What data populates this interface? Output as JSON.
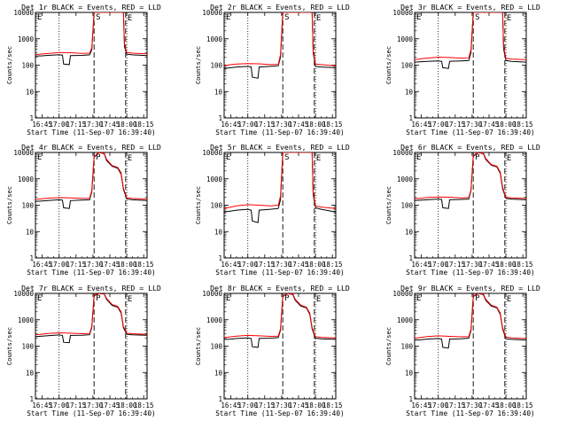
{
  "figure": {
    "ylabel": "Counts/sec",
    "xlabel": "Start Time (11-Sep-07 16:39:40)",
    "xticks": [
      "16:45",
      "17:00",
      "17:15",
      "17:30",
      "17:45",
      "18:00",
      "18:15"
    ],
    "yticks": [
      "1",
      "10",
      "100",
      "1000",
      "10000"
    ],
    "colors": {
      "events": "#000000",
      "lld": "#ff0000"
    },
    "markers": {
      "start": "S",
      "peak": "P",
      "end": "E"
    }
  },
  "chart_data": [
    {
      "type": "line",
      "title": "Det 1r BLACK = Events, RED = LLD",
      "ylim": [
        1,
        10000
      ],
      "xlim": [
        "16:39",
        "18:18"
      ],
      "log_y": true,
      "marker": "S",
      "series": [
        {
          "name": "Events",
          "x": [
            "16:39",
            "16:45",
            "16:50",
            "17:00",
            "17:03",
            "17:04",
            "17:09",
            "17:10",
            "17:20",
            "17:27",
            "17:29",
            "17:31",
            "17:35",
            "17:40",
            "17:50",
            "17:57",
            "17:58",
            "18:00",
            "18:05",
            "18:18"
          ],
          "y": [
            220,
            225,
            235,
            250,
            240,
            110,
            105,
            230,
            235,
            245,
            380,
            10000,
            10000,
            10000,
            10000,
            10000,
            500,
            260,
            245,
            230
          ]
        },
        {
          "name": "LLD",
          "x": [
            "16:39",
            "16:45",
            "16:50",
            "17:00",
            "17:10",
            "17:20",
            "17:27",
            "17:29",
            "17:31",
            "17:35",
            "17:40",
            "17:50",
            "17:57",
            "17:58",
            "18:00",
            "18:05",
            "18:18"
          ],
          "y": [
            250,
            265,
            275,
            300,
            295,
            280,
            285,
            450,
            10000,
            10000,
            10000,
            10000,
            10000,
            600,
            300,
            285,
            270
          ]
        }
      ]
    },
    {
      "type": "line",
      "title": "Det 2r BLACK = Events, RED = LLD",
      "ylim": [
        1,
        10000
      ],
      "xlim": [
        "16:39",
        "18:18"
      ],
      "log_y": true,
      "marker": "S",
      "series": [
        {
          "name": "Events",
          "x": [
            "16:39",
            "16:45",
            "16:50",
            "17:00",
            "17:03",
            "17:04",
            "17:09",
            "17:10",
            "17:20",
            "17:27",
            "17:29",
            "17:31",
            "17:35",
            "17:40",
            "17:50",
            "17:57",
            "17:58",
            "18:00",
            "18:05",
            "18:18"
          ],
          "y": [
            75,
            80,
            85,
            90,
            85,
            35,
            32,
            85,
            90,
            95,
            200,
            10000,
            10000,
            10000,
            10000,
            10000,
            300,
            90,
            85,
            80
          ]
        },
        {
          "name": "LLD",
          "x": [
            "16:39",
            "16:45",
            "16:50",
            "17:00",
            "17:10",
            "17:20",
            "17:27",
            "17:29",
            "17:31",
            "17:35",
            "17:40",
            "17:50",
            "17:57",
            "17:58",
            "18:00",
            "18:05",
            "18:18"
          ],
          "y": [
            95,
            105,
            110,
            115,
            112,
            105,
            108,
            250,
            10000,
            10000,
            10000,
            10000,
            10000,
            350,
            110,
            105,
            95
          ]
        }
      ]
    },
    {
      "type": "line",
      "title": "Det 3r BLACK = Events, RED = LLD",
      "ylim": [
        1,
        10000
      ],
      "xlim": [
        "16:39",
        "18:18"
      ],
      "log_y": true,
      "marker": "S",
      "series": [
        {
          "name": "Events",
          "x": [
            "16:39",
            "16:45",
            "16:50",
            "17:00",
            "17:03",
            "17:04",
            "17:09",
            "17:10",
            "17:20",
            "17:27",
            "17:29",
            "17:31",
            "17:35",
            "17:40",
            "17:50",
            "17:57",
            "17:58",
            "18:00",
            "18:05",
            "18:18"
          ],
          "y": [
            130,
            135,
            140,
            145,
            140,
            80,
            75,
            140,
            145,
            150,
            300,
            10000,
            10000,
            10000,
            10000,
            10000,
            400,
            150,
            140,
            130
          ]
        },
        {
          "name": "LLD",
          "x": [
            "16:39",
            "16:45",
            "16:50",
            "17:00",
            "17:10",
            "17:20",
            "17:27",
            "17:29",
            "17:31",
            "17:35",
            "17:40",
            "17:50",
            "17:57",
            "17:58",
            "18:00",
            "18:05",
            "18:18"
          ],
          "y": [
            160,
            175,
            185,
            200,
            195,
            185,
            190,
            380,
            10000,
            10000,
            10000,
            10000,
            10000,
            500,
            180,
            170,
            160
          ]
        }
      ]
    },
    {
      "type": "line",
      "title": "Det 4r BLACK = Events, RED = LLD",
      "ylim": [
        1,
        10000
      ],
      "xlim": [
        "16:39",
        "18:18"
      ],
      "log_y": true,
      "marker": "P",
      "series": [
        {
          "name": "Events",
          "x": [
            "16:39",
            "16:45",
            "16:50",
            "17:00",
            "17:03",
            "17:04",
            "17:09",
            "17:10",
            "17:20",
            "17:27",
            "17:29",
            "17:31",
            "17:35",
            "17:40",
            "17:42",
            "17:47",
            "17:52",
            "17:55",
            "17:57",
            "18:00",
            "18:05",
            "18:18"
          ],
          "y": [
            140,
            145,
            150,
            160,
            155,
            80,
            75,
            150,
            155,
            160,
            320,
            6500,
            10000,
            9000,
            5000,
            3000,
            2500,
            1500,
            400,
            170,
            160,
            150
          ]
        },
        {
          "name": "LLD",
          "x": [
            "16:39",
            "16:45",
            "16:50",
            "17:00",
            "17:10",
            "17:20",
            "17:27",
            "17:29",
            "17:31",
            "17:35",
            "17:40",
            "17:42",
            "17:47",
            "17:52",
            "17:55",
            "17:57",
            "18:00",
            "18:05",
            "18:18"
          ],
          "y": [
            165,
            175,
            185,
            195,
            190,
            180,
            185,
            360,
            7000,
            10000,
            9500,
            5500,
            3200,
            2700,
            1700,
            450,
            190,
            180,
            170
          ]
        }
      ]
    },
    {
      "type": "line",
      "title": "Det 5r BLACK = Events, RED = LLD",
      "ylim": [
        1,
        10000
      ],
      "xlim": [
        "16:39",
        "18:18"
      ],
      "log_y": true,
      "marker": "S",
      "series": [
        {
          "name": "Events",
          "x": [
            "16:39",
            "16:45",
            "16:50",
            "17:00",
            "17:03",
            "17:04",
            "17:09",
            "17:10",
            "17:20",
            "17:27",
            "17:29",
            "17:31",
            "17:35",
            "17:40",
            "17:50",
            "17:57",
            "17:58",
            "18:00",
            "18:05",
            "18:18"
          ],
          "y": [
            55,
            60,
            65,
            70,
            65,
            25,
            22,
            65,
            70,
            75,
            160,
            10000,
            10000,
            10000,
            10000,
            10000,
            250,
            80,
            70,
            55
          ]
        },
        {
          "name": "LLD",
          "x": [
            "16:39",
            "16:45",
            "16:50",
            "17:00",
            "17:10",
            "17:20",
            "17:27",
            "17:29",
            "17:31",
            "17:35",
            "17:40",
            "17:50",
            "17:57",
            "17:58",
            "18:00",
            "18:05",
            "18:18"
          ],
          "y": [
            75,
            85,
            95,
            105,
            100,
            95,
            100,
            220,
            10000,
            10000,
            10000,
            10000,
            10000,
            300,
            95,
            85,
            75
          ]
        }
      ]
    },
    {
      "type": "line",
      "title": "Det 6r BLACK = Events, RED = LLD",
      "ylim": [
        1,
        10000
      ],
      "xlim": [
        "16:39",
        "18:18"
      ],
      "log_y": true,
      "marker": "P",
      "series": [
        {
          "name": "Events",
          "x": [
            "16:39",
            "16:45",
            "16:50",
            "17:00",
            "17:03",
            "17:04",
            "17:09",
            "17:10",
            "17:20",
            "17:27",
            "17:29",
            "17:31",
            "17:35",
            "17:40",
            "17:42",
            "17:47",
            "17:52",
            "17:55",
            "17:57",
            "18:00",
            "18:05",
            "18:18"
          ],
          "y": [
            150,
            155,
            160,
            170,
            165,
            80,
            75,
            160,
            165,
            170,
            350,
            7000,
            10000,
            9000,
            5500,
            3300,
            2800,
            1600,
            420,
            180,
            170,
            160
          ]
        },
        {
          "name": "LLD",
          "x": [
            "16:39",
            "16:45",
            "16:50",
            "17:00",
            "17:10",
            "17:20",
            "17:27",
            "17:29",
            "17:31",
            "17:35",
            "17:40",
            "17:42",
            "17:47",
            "17:52",
            "17:55",
            "17:57",
            "18:00",
            "18:05",
            "18:18"
          ],
          "y": [
            175,
            185,
            195,
            205,
            200,
            190,
            195,
            380,
            7500,
            10000,
            9500,
            6000,
            3500,
            3000,
            1800,
            480,
            200,
            190,
            180
          ]
        }
      ]
    },
    {
      "type": "line",
      "title": "Det 7r BLACK = Events, RED = LLD",
      "ylim": [
        1,
        10000
      ],
      "xlim": [
        "16:39",
        "18:18"
      ],
      "log_y": true,
      "marker": "P",
      "series": [
        {
          "name": "Events",
          "x": [
            "16:39",
            "16:45",
            "16:50",
            "17:00",
            "17:03",
            "17:04",
            "17:09",
            "17:10",
            "17:20",
            "17:27",
            "17:29",
            "17:31",
            "17:35",
            "17:40",
            "17:42",
            "17:47",
            "17:52",
            "17:55",
            "17:57",
            "18:00",
            "18:05",
            "18:18"
          ],
          "y": [
            230,
            240,
            250,
            265,
            255,
            140,
            135,
            255,
            260,
            270,
            500,
            8000,
            10000,
            9500,
            6000,
            3500,
            3000,
            1800,
            500,
            280,
            270,
            260
          ]
        },
        {
          "name": "LLD",
          "x": [
            "16:39",
            "16:45",
            "16:50",
            "17:00",
            "17:10",
            "17:20",
            "17:27",
            "17:29",
            "17:31",
            "17:35",
            "17:40",
            "17:42",
            "17:47",
            "17:52",
            "17:55",
            "17:57",
            "18:00",
            "18:05",
            "18:18"
          ],
          "y": [
            270,
            285,
            300,
            320,
            310,
            295,
            300,
            550,
            8500,
            10000,
            9800,
            6500,
            3800,
            3200,
            2000,
            560,
            310,
            295,
            280
          ]
        }
      ]
    },
    {
      "type": "line",
      "title": "Det 8r BLACK = Events, RED = LLD",
      "ylim": [
        1,
        10000
      ],
      "xlim": [
        "16:39",
        "18:18"
      ],
      "log_y": true,
      "marker": "P",
      "series": [
        {
          "name": "Events",
          "x": [
            "16:39",
            "16:45",
            "16:50",
            "17:00",
            "17:03",
            "17:04",
            "17:09",
            "17:10",
            "17:20",
            "17:27",
            "17:29",
            "17:31",
            "17:35",
            "17:40",
            "17:42",
            "17:47",
            "17:52",
            "17:55",
            "17:57",
            "18:00",
            "18:05",
            "18:18"
          ],
          "y": [
            180,
            185,
            195,
            205,
            195,
            95,
            90,
            195,
            200,
            210,
            400,
            7500,
            10000,
            9000,
            5500,
            3300,
            2800,
            1600,
            450,
            200,
            190,
            180
          ]
        },
        {
          "name": "LLD",
          "x": [
            "16:39",
            "16:45",
            "16:50",
            "17:00",
            "17:10",
            "17:20",
            "17:27",
            "17:29",
            "17:31",
            "17:35",
            "17:40",
            "17:42",
            "17:47",
            "17:52",
            "17:55",
            "17:57",
            "18:00",
            "18:05",
            "18:18"
          ],
          "y": [
            210,
            225,
            240,
            255,
            245,
            235,
            240,
            450,
            8000,
            10000,
            9500,
            6000,
            3600,
            3000,
            1800,
            500,
            230,
            215,
            205
          ]
        }
      ]
    },
    {
      "type": "line",
      "title": "Det 9r BLACK = Events, RED = LLD",
      "ylim": [
        1,
        10000
      ],
      "xlim": [
        "16:39",
        "18:18"
      ],
      "log_y": true,
      "marker": "P",
      "series": [
        {
          "name": "Events",
          "x": [
            "16:39",
            "16:45",
            "16:50",
            "17:00",
            "17:03",
            "17:04",
            "17:09",
            "17:10",
            "17:20",
            "17:27",
            "17:29",
            "17:31",
            "17:35",
            "17:40",
            "17:42",
            "17:47",
            "17:52",
            "17:55",
            "17:57",
            "18:00",
            "18:05",
            "18:18"
          ],
          "y": [
            170,
            175,
            185,
            195,
            185,
            90,
            85,
            185,
            190,
            200,
            380,
            7500,
            10000,
            9000,
            5500,
            3300,
            2800,
            1600,
            450,
            190,
            180,
            170
          ]
        },
        {
          "name": "LLD",
          "x": [
            "16:39",
            "16:45",
            "16:50",
            "17:00",
            "17:10",
            "17:20",
            "17:27",
            "17:29",
            "17:31",
            "17:35",
            "17:40",
            "17:42",
            "17:47",
            "17:52",
            "17:55",
            "17:57",
            "18:00",
            "18:05",
            "18:18"
          ],
          "y": [
            200,
            215,
            230,
            245,
            235,
            225,
            230,
            430,
            8000,
            10000,
            9500,
            6000,
            3600,
            3000,
            1800,
            500,
            220,
            205,
            195
          ]
        }
      ]
    }
  ]
}
